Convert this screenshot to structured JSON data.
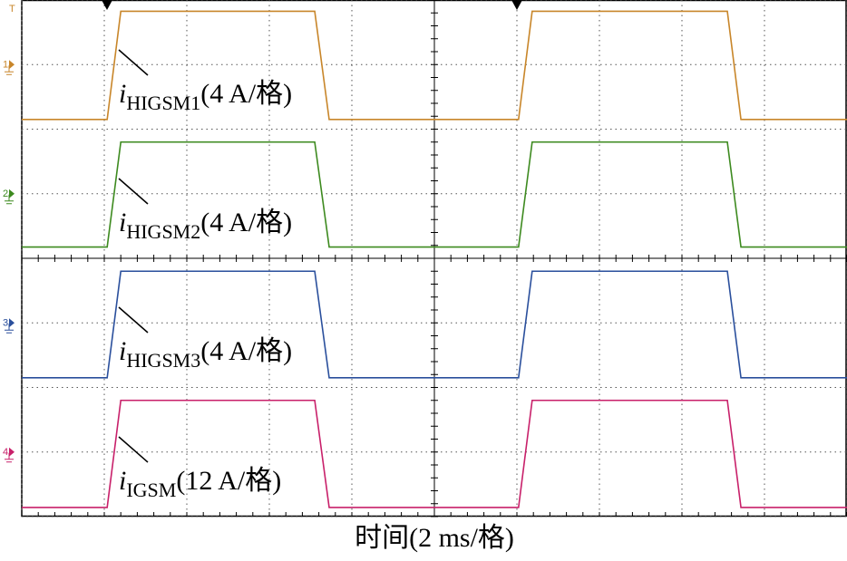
{
  "chart_data": {
    "type": "line",
    "x_label": "时间(2 ms/格)",
    "trigger_label": "T",
    "x": [
      0,
      2.07,
      2.4,
      7.1,
      7.45,
      12.04,
      12.37,
      17.1,
      17.43,
      20
    ],
    "xlim": [
      0,
      20
    ],
    "xticks": [
      0,
      2,
      4,
      6,
      8,
      10,
      12,
      14,
      16,
      18,
      20
    ],
    "ylim": [
      -28,
      4
    ],
    "yticks": [
      -28,
      -24,
      -20,
      -16,
      -12,
      -8,
      -4,
      0,
      4
    ],
    "grid": true,
    "series": [
      {
        "channel": "1",
        "symbol": "i",
        "sub": "HIGSM1",
        "scale": "(4 A/格)",
        "color": "#c8862a",
        "ylim": [
          -28,
          4
        ],
        "values": [
          -3.4,
          -3.4,
          3.3,
          3.3,
          -3.4,
          -3.4,
          3.3,
          3.3,
          -3.4,
          -3.4
        ]
      },
      {
        "channel": "2",
        "symbol": "i",
        "sub": "HIGSM2",
        "scale": "(4 A/格)",
        "color": "#3d8a1f",
        "ylim": [
          -20,
          12
        ],
        "values": [
          -3.3,
          -3.3,
          3.2,
          3.2,
          -3.3,
          -3.3,
          3.2,
          3.2,
          -3.3,
          -3.3
        ]
      },
      {
        "channel": "3",
        "symbol": "i",
        "sub": "HIGSM3",
        "scale": "(4 A/格)",
        "color": "#2a4f9c",
        "ylim": [
          -12,
          20
        ],
        "values": [
          -3.4,
          -3.4,
          3.2,
          3.2,
          -3.4,
          -3.4,
          3.2,
          3.2,
          -3.4,
          -3.4
        ]
      },
      {
        "channel": "4",
        "symbol": "i",
        "sub": "IGSM",
        "scale": "(12 A/格)",
        "color": "#c8206a",
        "ylim": [
          -12,
          84
        ],
        "values": [
          -10.3,
          -10.3,
          9.6,
          9.6,
          -10.3,
          -10.3,
          9.6,
          9.6,
          -10.3,
          -10.3
        ]
      }
    ]
  }
}
